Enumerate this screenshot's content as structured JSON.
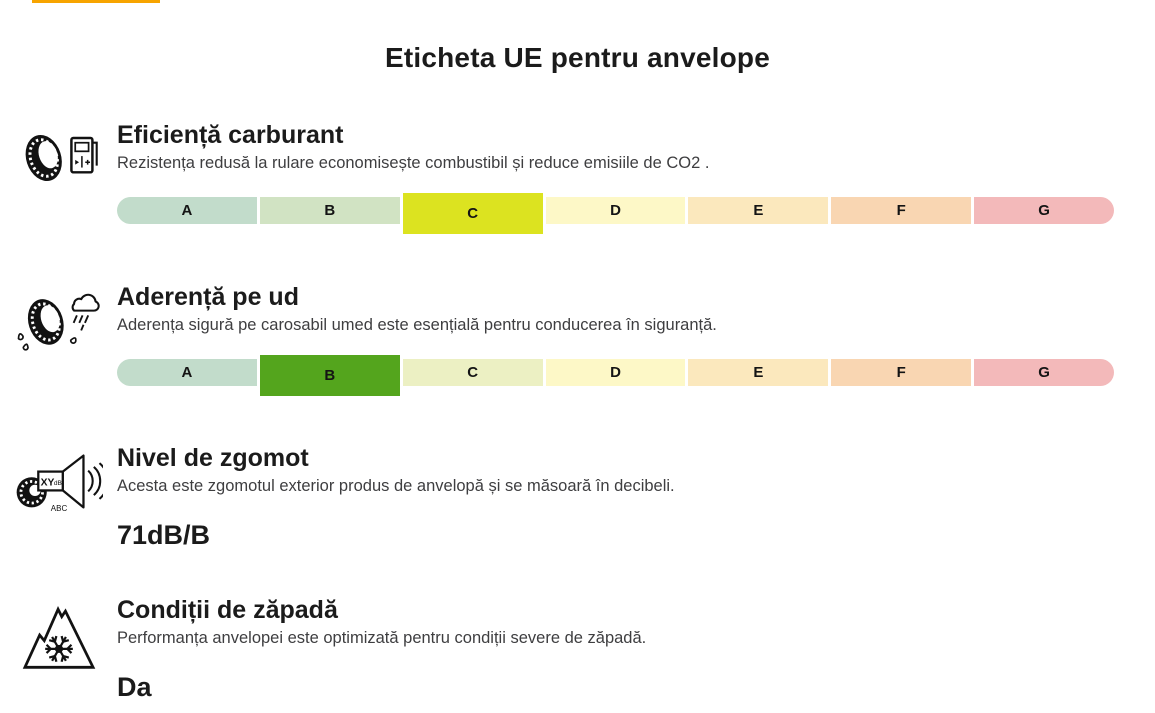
{
  "page": {
    "title": "Eticheta UE pentru anvelope",
    "accent_color": "#f7a400"
  },
  "rating_scale": {
    "grades": [
      "A",
      "B",
      "C",
      "D",
      "E",
      "F",
      "G"
    ],
    "muted_colors": [
      "#c2dccb",
      "#d1e3c3",
      "#ecf0c3",
      "#fdf8c7",
      "#fbe8bd",
      "#f9d6b2",
      "#f3b9ba"
    ]
  },
  "sections": [
    {
      "id": "fuel-efficiency",
      "icon": "tyre-fuel-pump-icon",
      "title": "Eficiență carburant",
      "description": "Rezistența redusă la rulare economisește combustibil și reduce emisiile de CO2 .",
      "rating": {
        "value": "C",
        "highlight_color": "#dce320"
      }
    },
    {
      "id": "wet-grip",
      "icon": "tyre-rain-cloud-icon",
      "title": "Aderență pe ud",
      "description": "Aderența sigură pe carosabil umed este esențială pentru conducerea în siguranță.",
      "rating": {
        "value": "B",
        "highlight_color": "#54a51d"
      }
    },
    {
      "id": "noise-level",
      "icon": "tyre-noise-speaker-icon",
      "title": "Nivel de zgomot",
      "description": "Acesta este zgomotul exterior produs de anvelopă și se măsoară în decibeli.",
      "value": "71dB/B"
    },
    {
      "id": "snow-conditions",
      "icon": "snowflake-mountain-icon",
      "title": "Condiții de zăpadă",
      "description": "Performanța anvelopei este optimizată pentru condiții severe de zăpadă.",
      "value": "Da"
    }
  ]
}
